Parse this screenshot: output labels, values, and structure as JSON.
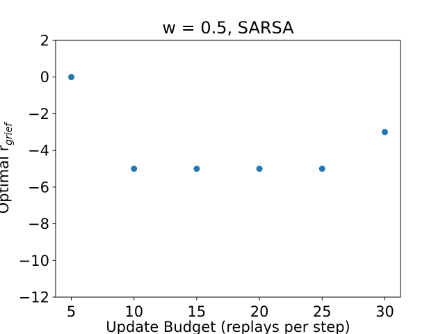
{
  "chart_data": {
    "type": "scatter",
    "title": "w = 0.5, SARSA",
    "xlabel": "Update Budget (replays per step)",
    "ylabel_main": "Optimal r",
    "ylabel_sub": "grief",
    "xlim": [
      3.75,
      31.25
    ],
    "ylim": [
      -12,
      2
    ],
    "xticks": [
      5,
      10,
      15,
      20,
      25,
      30
    ],
    "xtick_labels": [
      "5",
      "10",
      "15",
      "20",
      "25",
      "30"
    ],
    "yticks": [
      2,
      0,
      -2,
      -4,
      -6,
      -8,
      -10,
      -12
    ],
    "ytick_labels": [
      "2",
      "0",
      "−2",
      "−4",
      "−6",
      "−8",
      "−10",
      "−12"
    ],
    "grid": false,
    "series": [
      {
        "x": [
          5,
          10,
          15,
          20,
          25,
          30
        ],
        "y": [
          0,
          -5,
          -5,
          -5,
          -5,
          -3
        ],
        "color": "#1f77b4"
      }
    ]
  }
}
